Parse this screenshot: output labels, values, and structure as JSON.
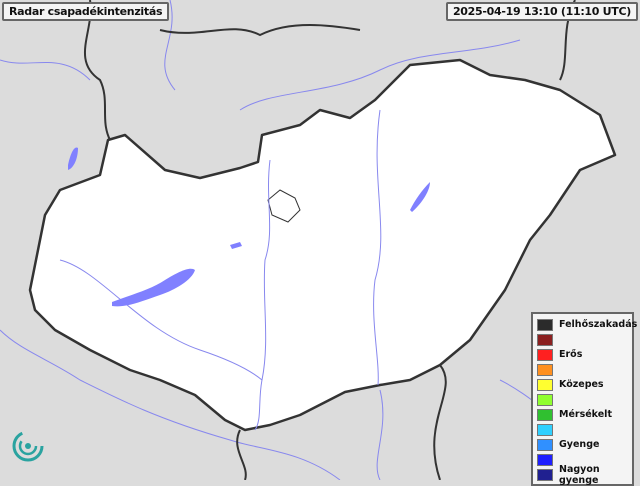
{
  "title": "Radar csapadékintenzitás",
  "timestamp": "2025-04-19 13:10 (11:10 UTC)",
  "legend": [
    {
      "label": "Felhőszakadás",
      "color": "#2b2b2b"
    },
    {
      "label": "",
      "color": "#8b2020"
    },
    {
      "label": "Erős",
      "color": "#ff2020"
    },
    {
      "label": "",
      "color": "#ff9020"
    },
    {
      "label": "Közepes",
      "color": "#ffff30"
    },
    {
      "label": "",
      "color": "#90ff30"
    },
    {
      "label": "Mérsékelt",
      "color": "#30c030"
    },
    {
      "label": "",
      "color": "#30d0ff"
    },
    {
      "label": "Gyenge",
      "color": "#3090ff"
    },
    {
      "label": "",
      "color": "#2020ff"
    },
    {
      "label": "Nagyon gyenge",
      "color": "#202090"
    }
  ],
  "colors": {
    "country": "#ffffff",
    "surroundings": "#dcdcdc",
    "water": "#8080ff",
    "border": "#333333"
  }
}
